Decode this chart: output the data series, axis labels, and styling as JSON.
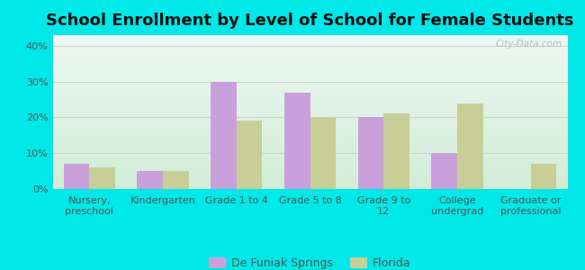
{
  "title": "School Enrollment by Level of School for Female Students",
  "categories": [
    "Nursery,\npreschool",
    "Kindergarten",
    "Grade 1 to 4",
    "Grade 5 to 8",
    "Grade 9 to\n12",
    "College\nundergrad",
    "Graduate or\nprofessional"
  ],
  "defuniak_values": [
    7,
    5,
    30,
    27,
    20,
    10,
    0
  ],
  "florida_values": [
    6,
    5,
    19,
    20,
    21,
    24,
    7
  ],
  "defuniak_color": "#c9a0dc",
  "florida_color": "#c8cf96",
  "background_color": "#00e8e8",
  "title_fontsize": 13,
  "title_fontweight": "bold",
  "legend_labels": [
    "De Funiak Springs",
    "Florida"
  ],
  "yticks": [
    0,
    10,
    20,
    30,
    40
  ],
  "ylim": [
    0,
    43
  ],
  "watermark": "City-Data.com",
  "bar_width": 0.35,
  "tick_label_color": "#555555",
  "tick_label_fontsize": 8,
  "ytick_label_fontsize": 8,
  "grid_color": "#cccccc",
  "legend_fontsize": 9
}
